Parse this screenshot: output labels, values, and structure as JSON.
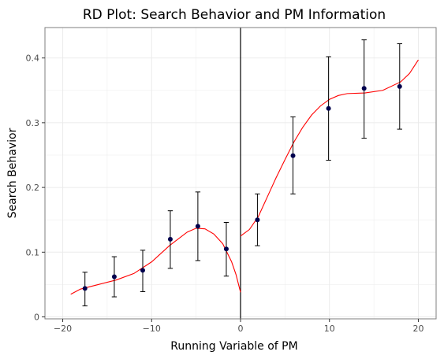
{
  "chart_data": {
    "type": "scatter",
    "title": "RD Plot: Search Behavior and PM Information",
    "xlabel": "Running Variable of PM",
    "ylabel": "Search Behavior",
    "xlim": [
      -22,
      22
    ],
    "ylim": [
      -0.003,
      0.447
    ],
    "x_ticks": [
      -20,
      -10,
      0,
      10,
      20
    ],
    "x_tick_labels": [
      "−20",
      "−10",
      "0",
      "10",
      "20"
    ],
    "y_ticks": [
      0,
      0.1,
      0.2,
      0.3,
      0.4
    ],
    "y_tick_labels": [
      "0",
      "0.1",
      "0.2",
      "0.3",
      "0.4"
    ],
    "grid": true,
    "legend": "none",
    "cutoff": 0,
    "colors": {
      "points": "#00004d",
      "fit": "#ff0000",
      "errorbars": "#000000",
      "cutoff_line": "#000000",
      "grid": "#ebebeb",
      "panel_border": "#7f7f7f"
    },
    "points": [
      {
        "x": -17.5,
        "y": 0.044,
        "lo": 0.017,
        "hi": 0.069
      },
      {
        "x": -14.2,
        "y": 0.062,
        "lo": 0.031,
        "hi": 0.093
      },
      {
        "x": -11.0,
        "y": 0.072,
        "lo": 0.039,
        "hi": 0.103
      },
      {
        "x": -7.9,
        "y": 0.12,
        "lo": 0.075,
        "hi": 0.164
      },
      {
        "x": -4.8,
        "y": 0.14,
        "lo": 0.087,
        "hi": 0.193
      },
      {
        "x": -1.6,
        "y": 0.105,
        "lo": 0.063,
        "hi": 0.146
      },
      {
        "x": 1.9,
        "y": 0.15,
        "lo": 0.11,
        "hi": 0.19
      },
      {
        "x": 5.9,
        "y": 0.249,
        "lo": 0.19,
        "hi": 0.309
      },
      {
        "x": 9.9,
        "y": 0.322,
        "lo": 0.242,
        "hi": 0.402
      },
      {
        "x": 13.9,
        "y": 0.353,
        "lo": 0.276,
        "hi": 0.428
      },
      {
        "x": 17.9,
        "y": 0.356,
        "lo": 0.29,
        "hi": 0.422
      }
    ],
    "fit_left": [
      [
        -19.1,
        0.035
      ],
      [
        -18,
        0.043
      ],
      [
        -16,
        0.05
      ],
      [
        -14,
        0.057
      ],
      [
        -12,
        0.067
      ],
      [
        -10,
        0.085
      ],
      [
        -8,
        0.11
      ],
      [
        -6,
        0.131
      ],
      [
        -5,
        0.137
      ],
      [
        -4,
        0.136
      ],
      [
        -3,
        0.128
      ],
      [
        -2,
        0.113
      ],
      [
        -1,
        0.085
      ],
      [
        -0.5,
        0.065
      ],
      [
        0,
        0.038
      ]
    ],
    "fit_right": [
      [
        0,
        0.125
      ],
      [
        1,
        0.135
      ],
      [
        2,
        0.155
      ],
      [
        3,
        0.185
      ],
      [
        4,
        0.215
      ],
      [
        5,
        0.243
      ],
      [
        6,
        0.27
      ],
      [
        7,
        0.293
      ],
      [
        8,
        0.312
      ],
      [
        9,
        0.326
      ],
      [
        10,
        0.336
      ],
      [
        11,
        0.342
      ],
      [
        12,
        0.345
      ],
      [
        14,
        0.346
      ],
      [
        16,
        0.35
      ],
      [
        18,
        0.363
      ],
      [
        19,
        0.376
      ],
      [
        20,
        0.397
      ]
    ]
  }
}
